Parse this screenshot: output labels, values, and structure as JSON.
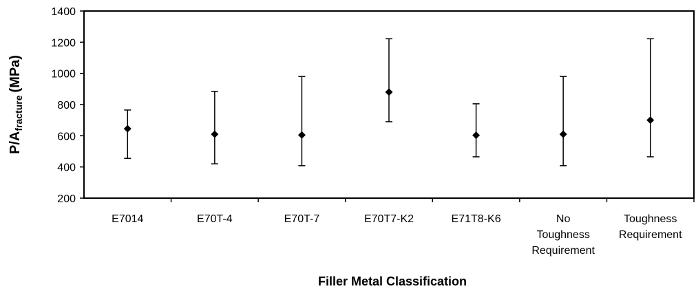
{
  "chart_data": {
    "type": "scatter",
    "xlabel": "Filler Metal Classification",
    "ylabel": {
      "main": "P/A",
      "subscript": "fracture",
      "unit": "(MPa)"
    },
    "ylim": [
      200,
      1400
    ],
    "yticks": [
      200,
      400,
      600,
      800,
      1000,
      1200,
      1400
    ],
    "grid": false,
    "categories": [
      [
        "E7014"
      ],
      [
        "E70T-4"
      ],
      [
        "E70T-7"
      ],
      [
        "E70T7-K2"
      ],
      [
        "E71T8-K6"
      ],
      [
        "No",
        "Toughness",
        "Requirement"
      ],
      [
        "Toughness",
        "Requirement"
      ]
    ],
    "series": [
      {
        "values": [
          645,
          610,
          605,
          880,
          603,
          610,
          700
        ],
        "error_low": [
          455,
          420,
          408,
          690,
          465,
          408,
          465
        ],
        "error_high": [
          765,
          885,
          980,
          1222,
          805,
          980,
          1222
        ]
      }
    ]
  }
}
